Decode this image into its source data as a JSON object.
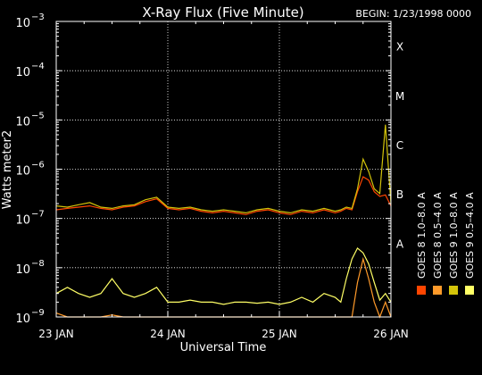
{
  "chart_data": {
    "type": "line",
    "title": "X-Ray Flux (Five Minute)",
    "begin_label": "BEGIN: 1/23/1998 0000",
    "xlabel": "Universal Time",
    "ylabel": "Watts meter2",
    "x_unit": "day",
    "xlim": [
      0,
      3
    ],
    "x_ticks": [
      {
        "x": 0,
        "label": "23 JAN"
      },
      {
        "x": 1,
        "label": "24 JAN"
      },
      {
        "x": 2,
        "label": "25 JAN"
      },
      {
        "x": 3,
        "label": "26 JAN"
      }
    ],
    "y_scale": "log",
    "ylim": [
      1e-09,
      0.001
    ],
    "y_ticks": [
      {
        "value": 1e-09,
        "base": "10",
        "exp": "−9"
      },
      {
        "value": 1e-08,
        "base": "10",
        "exp": "−8"
      },
      {
        "value": 1e-07,
        "base": "10",
        "exp": "−7"
      },
      {
        "value": 1e-06,
        "base": "10",
        "exp": "−6"
      },
      {
        "value": 1e-05,
        "base": "10",
        "exp": "−5"
      },
      {
        "value": 0.0001,
        "base": "10",
        "exp": "−4"
      },
      {
        "value": 0.001,
        "base": "10",
        "exp": "−3"
      }
    ],
    "flare_classes": [
      {
        "label": "A",
        "value": 1e-08
      },
      {
        "label": "B",
        "value": 1e-07
      },
      {
        "label": "C",
        "value": 1e-06
      },
      {
        "label": "M",
        "value": 1e-05
      },
      {
        "label": "X",
        "value": 0.0001
      }
    ],
    "grid": true,
    "legend": [
      {
        "label": "GOES 8 1.0–8.0 A",
        "color": "#ff4500"
      },
      {
        "label": "GOES 8 0.5–4.0 A",
        "color": "#ff9a2a"
      },
      {
        "label": "GOES 9 1.0–8.0 A",
        "color": "#d4c40a"
      },
      {
        "label": "GOES 9 0.5–4.0 A",
        "color": "#ffff66"
      }
    ],
    "series": [
      {
        "color": "#ff4500",
        "x": [
          0.0,
          0.1,
          0.2,
          0.3,
          0.4,
          0.5,
          0.6,
          0.7,
          0.8,
          0.9,
          1.0,
          1.1,
          1.2,
          1.3,
          1.4,
          1.5,
          1.6,
          1.7,
          1.8,
          1.9,
          2.0,
          2.1,
          2.2,
          2.3,
          2.4,
          2.5,
          2.55,
          2.6,
          2.65,
          2.7,
          2.75,
          2.8,
          2.85,
          2.9,
          2.95,
          3.0
        ],
        "y": [
          1.5e-07,
          1.6e-07,
          1.7e-07,
          1.8e-07,
          1.6e-07,
          1.5e-07,
          1.7e-07,
          1.8e-07,
          2.2e-07,
          2.5e-07,
          1.6e-07,
          1.5e-07,
          1.6e-07,
          1.4e-07,
          1.3e-07,
          1.4e-07,
          1.3e-07,
          1.2e-07,
          1.4e-07,
          1.5e-07,
          1.3e-07,
          1.2e-07,
          1.4e-07,
          1.3e-07,
          1.5e-07,
          1.3e-07,
          1.4e-07,
          1.6e-07,
          1.5e-07,
          3.5e-07,
          7e-07,
          6e-07,
          3.5e-07,
          2.8e-07,
          3e-07,
          1.8e-07
        ]
      },
      {
        "color": "#ff9a2a",
        "x": [
          0.0,
          0.1,
          0.2,
          0.3,
          0.4,
          0.5,
          0.6,
          0.7,
          0.8,
          0.9,
          1.0,
          1.1,
          1.2,
          1.3,
          1.4,
          1.5,
          1.6,
          1.7,
          1.8,
          1.9,
          2.0,
          2.1,
          2.2,
          2.3,
          2.4,
          2.5,
          2.55,
          2.6,
          2.65,
          2.7,
          2.75,
          2.8,
          2.85,
          2.9,
          2.95,
          3.0
        ],
        "y": [
          1.2e-09,
          1e-09,
          1e-09,
          1e-09,
          1e-09,
          1.1e-09,
          1e-09,
          1e-09,
          1e-09,
          1e-09,
          1e-09,
          1e-09,
          1e-09,
          1e-09,
          1e-09,
          1e-09,
          1e-09,
          1e-09,
          1e-09,
          1e-09,
          1e-09,
          1e-09,
          1e-09,
          1e-09,
          1e-09,
          1e-09,
          1e-09,
          1e-09,
          1e-09,
          5e-09,
          1.5e-08,
          6e-09,
          2e-09,
          1e-09,
          2e-09,
          1e-09
        ]
      },
      {
        "color": "#d4c40a",
        "x": [
          0.0,
          0.1,
          0.2,
          0.3,
          0.4,
          0.5,
          0.6,
          0.7,
          0.8,
          0.9,
          1.0,
          1.1,
          1.2,
          1.3,
          1.4,
          1.5,
          1.6,
          1.7,
          1.8,
          1.9,
          2.0,
          2.1,
          2.2,
          2.3,
          2.4,
          2.5,
          2.55,
          2.6,
          2.65,
          2.7,
          2.75,
          2.8,
          2.85,
          2.9,
          2.95,
          3.0
        ],
        "y": [
          1.8e-07,
          1.7e-07,
          1.9e-07,
          2.1e-07,
          1.7e-07,
          1.6e-07,
          1.8e-07,
          1.9e-07,
          2.4e-07,
          2.7e-07,
          1.7e-07,
          1.6e-07,
          1.7e-07,
          1.5e-07,
          1.4e-07,
          1.5e-07,
          1.4e-07,
          1.3e-07,
          1.5e-07,
          1.6e-07,
          1.4e-07,
          1.3e-07,
          1.5e-07,
          1.4e-07,
          1.6e-07,
          1.4e-07,
          1.5e-07,
          1.7e-07,
          1.6e-07,
          4e-07,
          1.6e-06,
          9e-07,
          4e-07,
          3.2e-07,
          8e-06,
          2e-07
        ]
      },
      {
        "color": "#ffff66",
        "x": [
          0.0,
          0.1,
          0.2,
          0.3,
          0.4,
          0.5,
          0.6,
          0.7,
          0.8,
          0.9,
          1.0,
          1.1,
          1.2,
          1.3,
          1.4,
          1.5,
          1.6,
          1.7,
          1.8,
          1.9,
          2.0,
          2.1,
          2.2,
          2.3,
          2.4,
          2.5,
          2.55,
          2.6,
          2.65,
          2.7,
          2.75,
          2.8,
          2.85,
          2.9,
          2.95,
          3.0
        ],
        "y": [
          3e-09,
          4e-09,
          3e-09,
          2.5e-09,
          3e-09,
          6e-09,
          3e-09,
          2.5e-09,
          3e-09,
          4e-09,
          2e-09,
          2e-09,
          2.2e-09,
          2e-09,
          2e-09,
          1.8e-09,
          2e-09,
          2e-09,
          1.9e-09,
          2e-09,
          1.8e-09,
          2e-09,
          2.5e-09,
          2e-09,
          3e-09,
          2.5e-09,
          2e-09,
          6e-09,
          1.5e-08,
          2.5e-08,
          2e-08,
          1.2e-08,
          5e-09,
          2.2e-09,
          3e-09,
          2e-09
        ]
      }
    ]
  }
}
